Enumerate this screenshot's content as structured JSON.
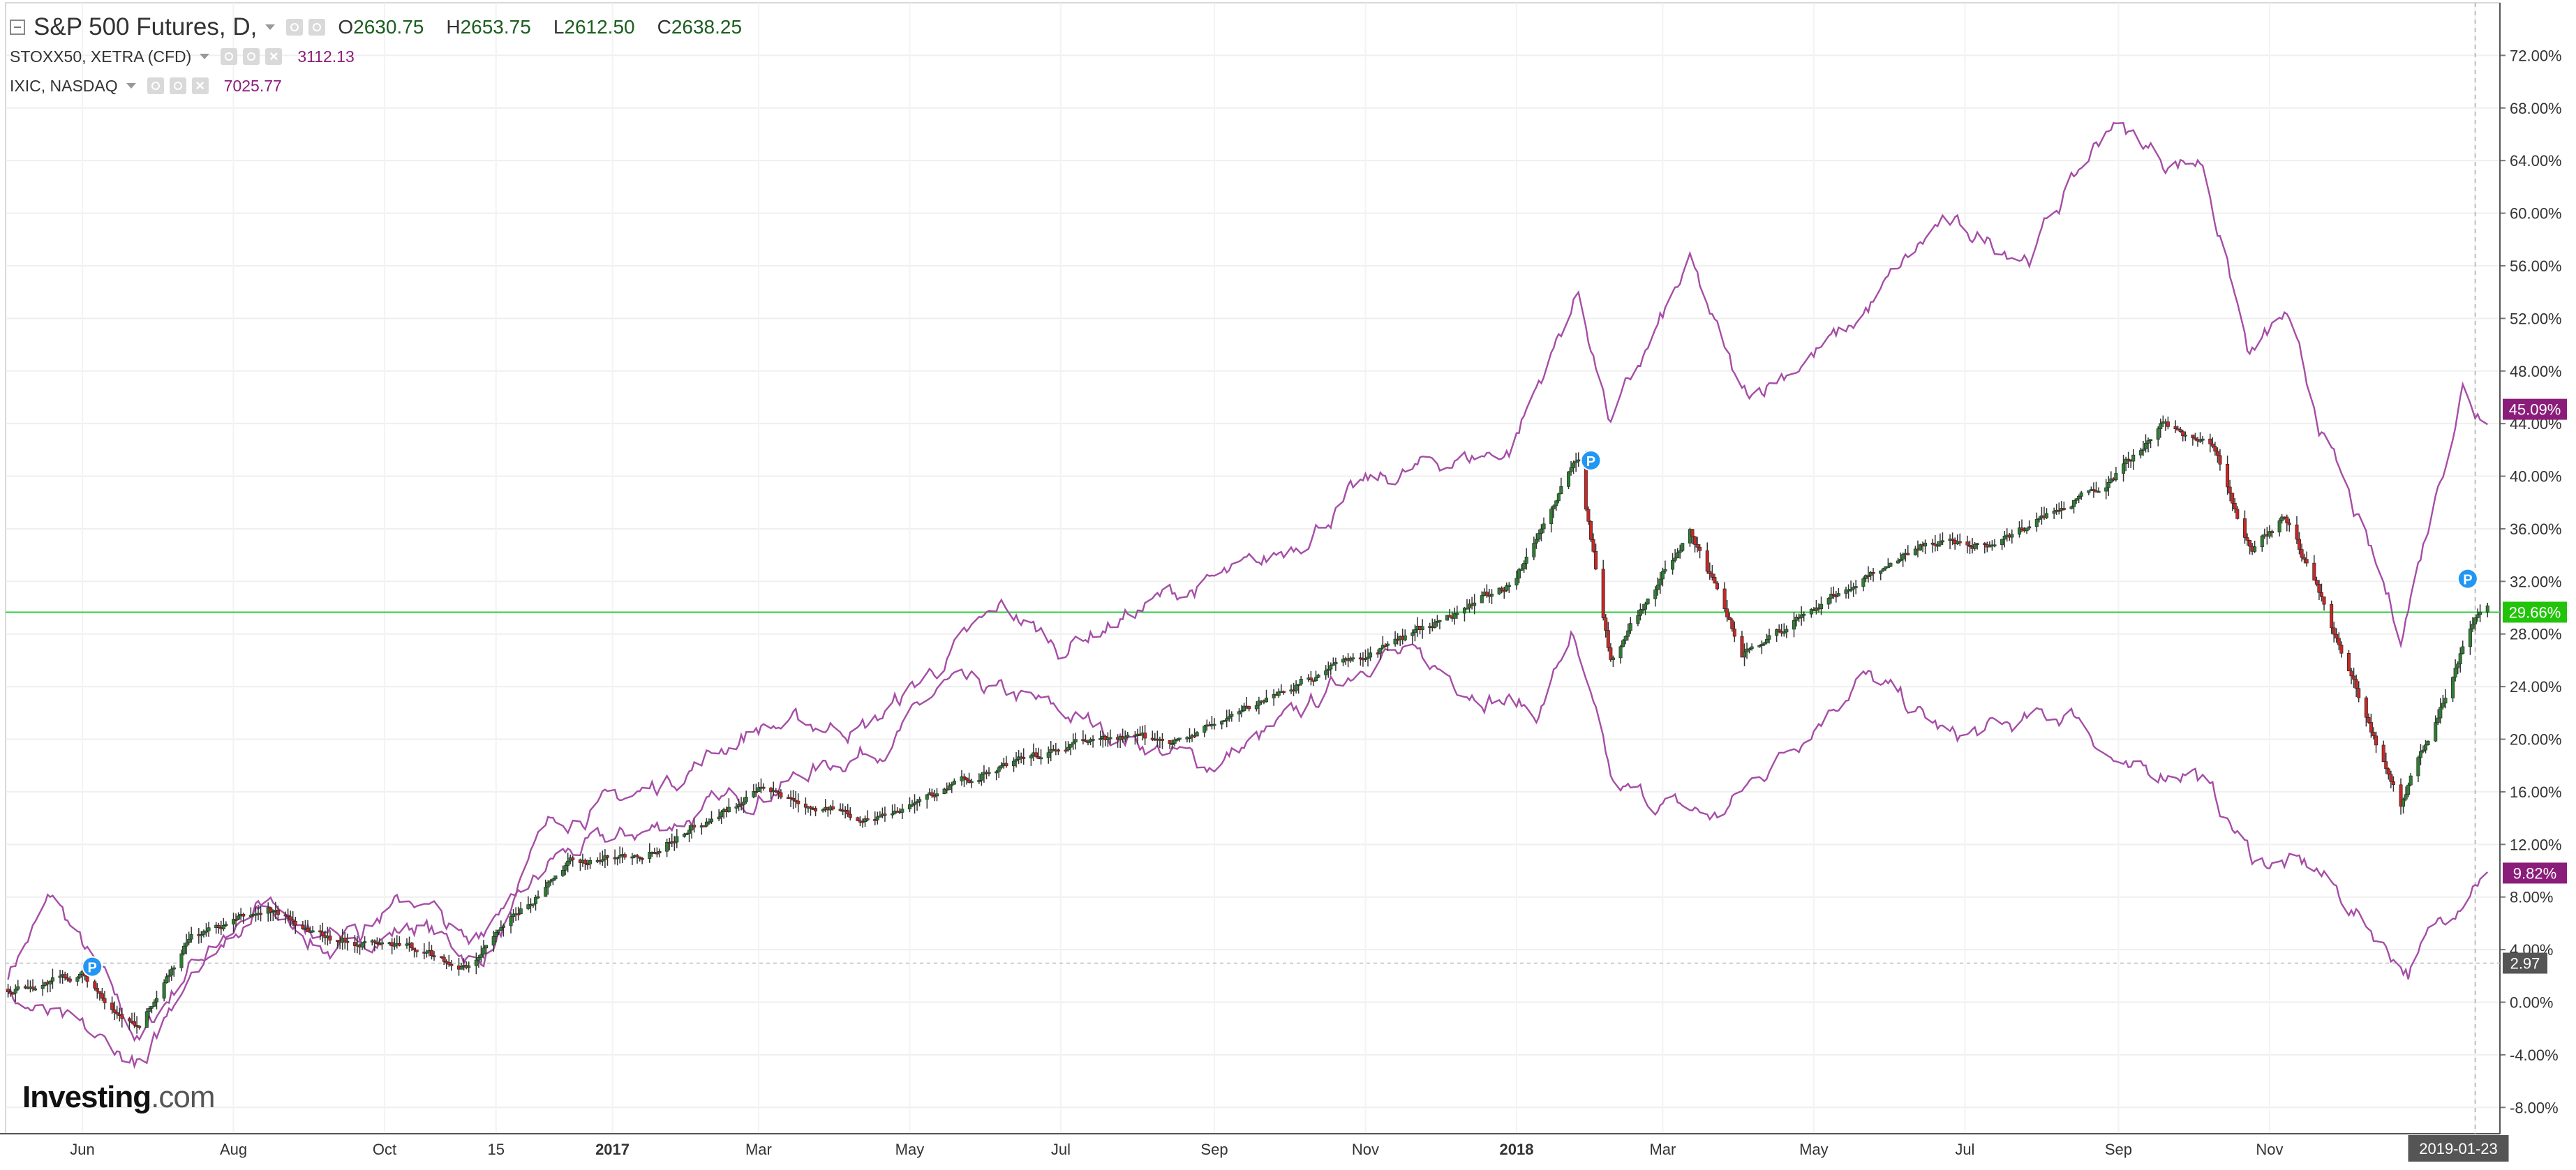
{
  "legend": {
    "main": {
      "symbol": "S&P 500 Futures, D,",
      "o_label": "O",
      "o": "2630.75",
      "h_label": "H",
      "h": "2653.75",
      "l_label": "L",
      "l": "2612.50",
      "c_label": "C",
      "c": "2638.25"
    },
    "series2": {
      "symbol": "STOXX50, XETRA (CFD)",
      "value": "3112.13"
    },
    "series3": {
      "symbol": "IXIC, NASDAQ",
      "value": "7025.77"
    }
  },
  "logo": {
    "name": "Investing",
    "suffix": ".com"
  },
  "colors": {
    "up": "#2e7d32",
    "down": "#c62828",
    "compare": "#a64da6",
    "current_line": "#2ecc40",
    "badge_purple": "#8b1d7a",
    "badge_green": "#22c40a",
    "badge_dark": "#555555"
  },
  "chart_data": {
    "type": "line",
    "title": "",
    "ylim": [
      -10,
      76
    ],
    "y_unit": "percent",
    "yticks": [
      "72.00%",
      "68.00%",
      "64.00%",
      "60.00%",
      "56.00%",
      "52.00%",
      "48.00%",
      "44.00%",
      "40.00%",
      "36.00%",
      "32.00%",
      "28.00%",
      "24.00%",
      "20.00%",
      "16.00%",
      "12.00%",
      "8.00%",
      "4.00%",
      "0.00%",
      "-4.00%",
      "-8.00%"
    ],
    "ytick_values": [
      72,
      68,
      64,
      60,
      56,
      52,
      48,
      44,
      40,
      36,
      32,
      28,
      24,
      20,
      16,
      12,
      8,
      4,
      0,
      -4,
      -8
    ],
    "x_labels": [
      "Jun",
      "Aug",
      "Oct",
      "15",
      "2017",
      "Mar",
      "May",
      "Jul",
      "Sep",
      "Nov",
      "2018",
      "Mar",
      "May",
      "Jul",
      "Sep",
      "Nov",
      "2019-01-23"
    ],
    "x_dates": [
      "2016-06-01",
      "2016-08-01",
      "2016-10-01",
      "2016-11-15",
      "2017-01-01",
      "2017-03-01",
      "2017-05-01",
      "2017-07-01",
      "2017-09-01",
      "2017-11-01",
      "2018-01-01",
      "2018-03-01",
      "2018-05-01",
      "2018-07-01",
      "2018-09-01",
      "2018-11-01",
      "2019-01-23"
    ],
    "x_range": [
      "2016-05-01",
      "2019-02-02"
    ],
    "grid": true,
    "series": [
      {
        "name": "S&P 500 Futures, D,",
        "style": "candlestick",
        "points": [
          [
            "2016-05-01",
            1
          ],
          [
            "2016-06-01",
            2
          ],
          [
            "2016-06-24",
            -2
          ],
          [
            "2016-07-15",
            5
          ],
          [
            "2016-08-15",
            7
          ],
          [
            "2016-09-09",
            5
          ],
          [
            "2016-10-15",
            4
          ],
          [
            "2016-11-04",
            2.5
          ],
          [
            "2016-11-15",
            5
          ],
          [
            "2016-12-15",
            10.5
          ],
          [
            "2017-01-15",
            11.5
          ],
          [
            "2017-03-01",
            16
          ],
          [
            "2017-04-15",
            14
          ],
          [
            "2017-06-01",
            17.5
          ],
          [
            "2017-07-15",
            20
          ],
          [
            "2017-08-20",
            20
          ],
          [
            "2017-10-01",
            24
          ],
          [
            "2017-11-15",
            27.5
          ],
          [
            "2017-12-31",
            32
          ],
          [
            "2018-01-26",
            41.5
          ],
          [
            "2018-02-08",
            26
          ],
          [
            "2018-03-12",
            36
          ],
          [
            "2018-04-02",
            26.5
          ],
          [
            "2018-05-01",
            30
          ],
          [
            "2018-06-15",
            35
          ],
          [
            "2018-07-15",
            35
          ],
          [
            "2018-08-30",
            40
          ],
          [
            "2018-09-20",
            44
          ],
          [
            "2018-10-10",
            42
          ],
          [
            "2018-10-25",
            34
          ],
          [
            "2018-11-07",
            37
          ],
          [
            "2018-11-23",
            30
          ],
          [
            "2018-12-24",
            15
          ],
          [
            "2019-01-08",
            22
          ],
          [
            "2019-01-23",
            29.7
          ],
          [
            "2019-01-28",
            30
          ]
        ],
        "last": "29.66%"
      },
      {
        "name": "STOXX50, XETRA (CFD)",
        "style": "line",
        "points": [
          [
            "2016-05-01",
            2
          ],
          [
            "2016-05-20",
            8
          ],
          [
            "2016-06-24",
            -3
          ],
          [
            "2016-07-15",
            3
          ],
          [
            "2016-08-15",
            7
          ],
          [
            "2016-09-09",
            4
          ],
          [
            "2016-10-15",
            6
          ],
          [
            "2016-11-08",
            3
          ],
          [
            "2016-12-09",
            11
          ],
          [
            "2017-01-15",
            13
          ],
          [
            "2017-03-01",
            16
          ],
          [
            "2017-04-24",
            20
          ],
          [
            "2017-05-15",
            24
          ],
          [
            "2017-06-15",
            23
          ],
          [
            "2017-08-29",
            18
          ],
          [
            "2017-09-30",
            21
          ],
          [
            "2017-11-07",
            27
          ],
          [
            "2017-12-15",
            24
          ],
          [
            "2018-01-10",
            22
          ],
          [
            "2018-01-23",
            28
          ],
          [
            "2018-02-09",
            16
          ],
          [
            "2018-03-23",
            14
          ],
          [
            "2018-05-20",
            25
          ],
          [
            "2018-06-26",
            20
          ],
          [
            "2018-07-20",
            21
          ],
          [
            "2018-08-15",
            22
          ],
          [
            "2018-09-06",
            17
          ],
          [
            "2018-10-01",
            18
          ],
          [
            "2018-10-25",
            11
          ],
          [
            "2018-11-20",
            10
          ],
          [
            "2018-12-27",
            2.5
          ],
          [
            "2019-01-23",
            9.8
          ],
          [
            "2019-01-28",
            10
          ]
        ],
        "last": "9.82%"
      },
      {
        "name": "IXIC, NASDAQ",
        "style": "line",
        "points": [
          [
            "2016-05-01",
            0.5
          ],
          [
            "2016-06-27",
            -5
          ],
          [
            "2016-07-15",
            3
          ],
          [
            "2016-08-15",
            8
          ],
          [
            "2016-09-09",
            5
          ],
          [
            "2016-10-15",
            8
          ],
          [
            "2016-11-04",
            4
          ],
          [
            "2016-12-09",
            14
          ],
          [
            "2017-01-15",
            16
          ],
          [
            "2017-03-01",
            21
          ],
          [
            "2017-04-15",
            21
          ],
          [
            "2017-06-08",
            30
          ],
          [
            "2017-06-30",
            27
          ],
          [
            "2017-08-15",
            31
          ],
          [
            "2017-09-20",
            33
          ],
          [
            "2017-10-30",
            39
          ],
          [
            "2017-11-30",
            41
          ],
          [
            "2017-12-29",
            42
          ],
          [
            "2018-01-26",
            54
          ],
          [
            "2018-02-08",
            44
          ],
          [
            "2018-03-12",
            56
          ],
          [
            "2018-04-02",
            46
          ],
          [
            "2018-05-15",
            51
          ],
          [
            "2018-06-20",
            59
          ],
          [
            "2018-07-27",
            57
          ],
          [
            "2018-08-29",
            67
          ],
          [
            "2018-09-20",
            64
          ],
          [
            "2018-10-05",
            64
          ],
          [
            "2018-10-24",
            49
          ],
          [
            "2018-11-07",
            52
          ],
          [
            "2018-11-23",
            43
          ],
          [
            "2018-12-24",
            28
          ],
          [
            "2019-01-18",
            47
          ],
          [
            "2019-01-23",
            45.1
          ],
          [
            "2019-01-28",
            45
          ]
        ],
        "last": "45.09%"
      }
    ],
    "price_line": {
      "value": 29.66,
      "label": "29.66%"
    },
    "reference_line": {
      "value": 2.97,
      "label": "2.97"
    },
    "markers": [
      {
        "date": "2016-06-05",
        "value": 2.7,
        "label": "P"
      },
      {
        "date": "2018-01-31",
        "value": 41.2,
        "label": "P"
      },
      {
        "date": "2019-01-20",
        "value": 32.2,
        "label": "P"
      }
    ]
  }
}
